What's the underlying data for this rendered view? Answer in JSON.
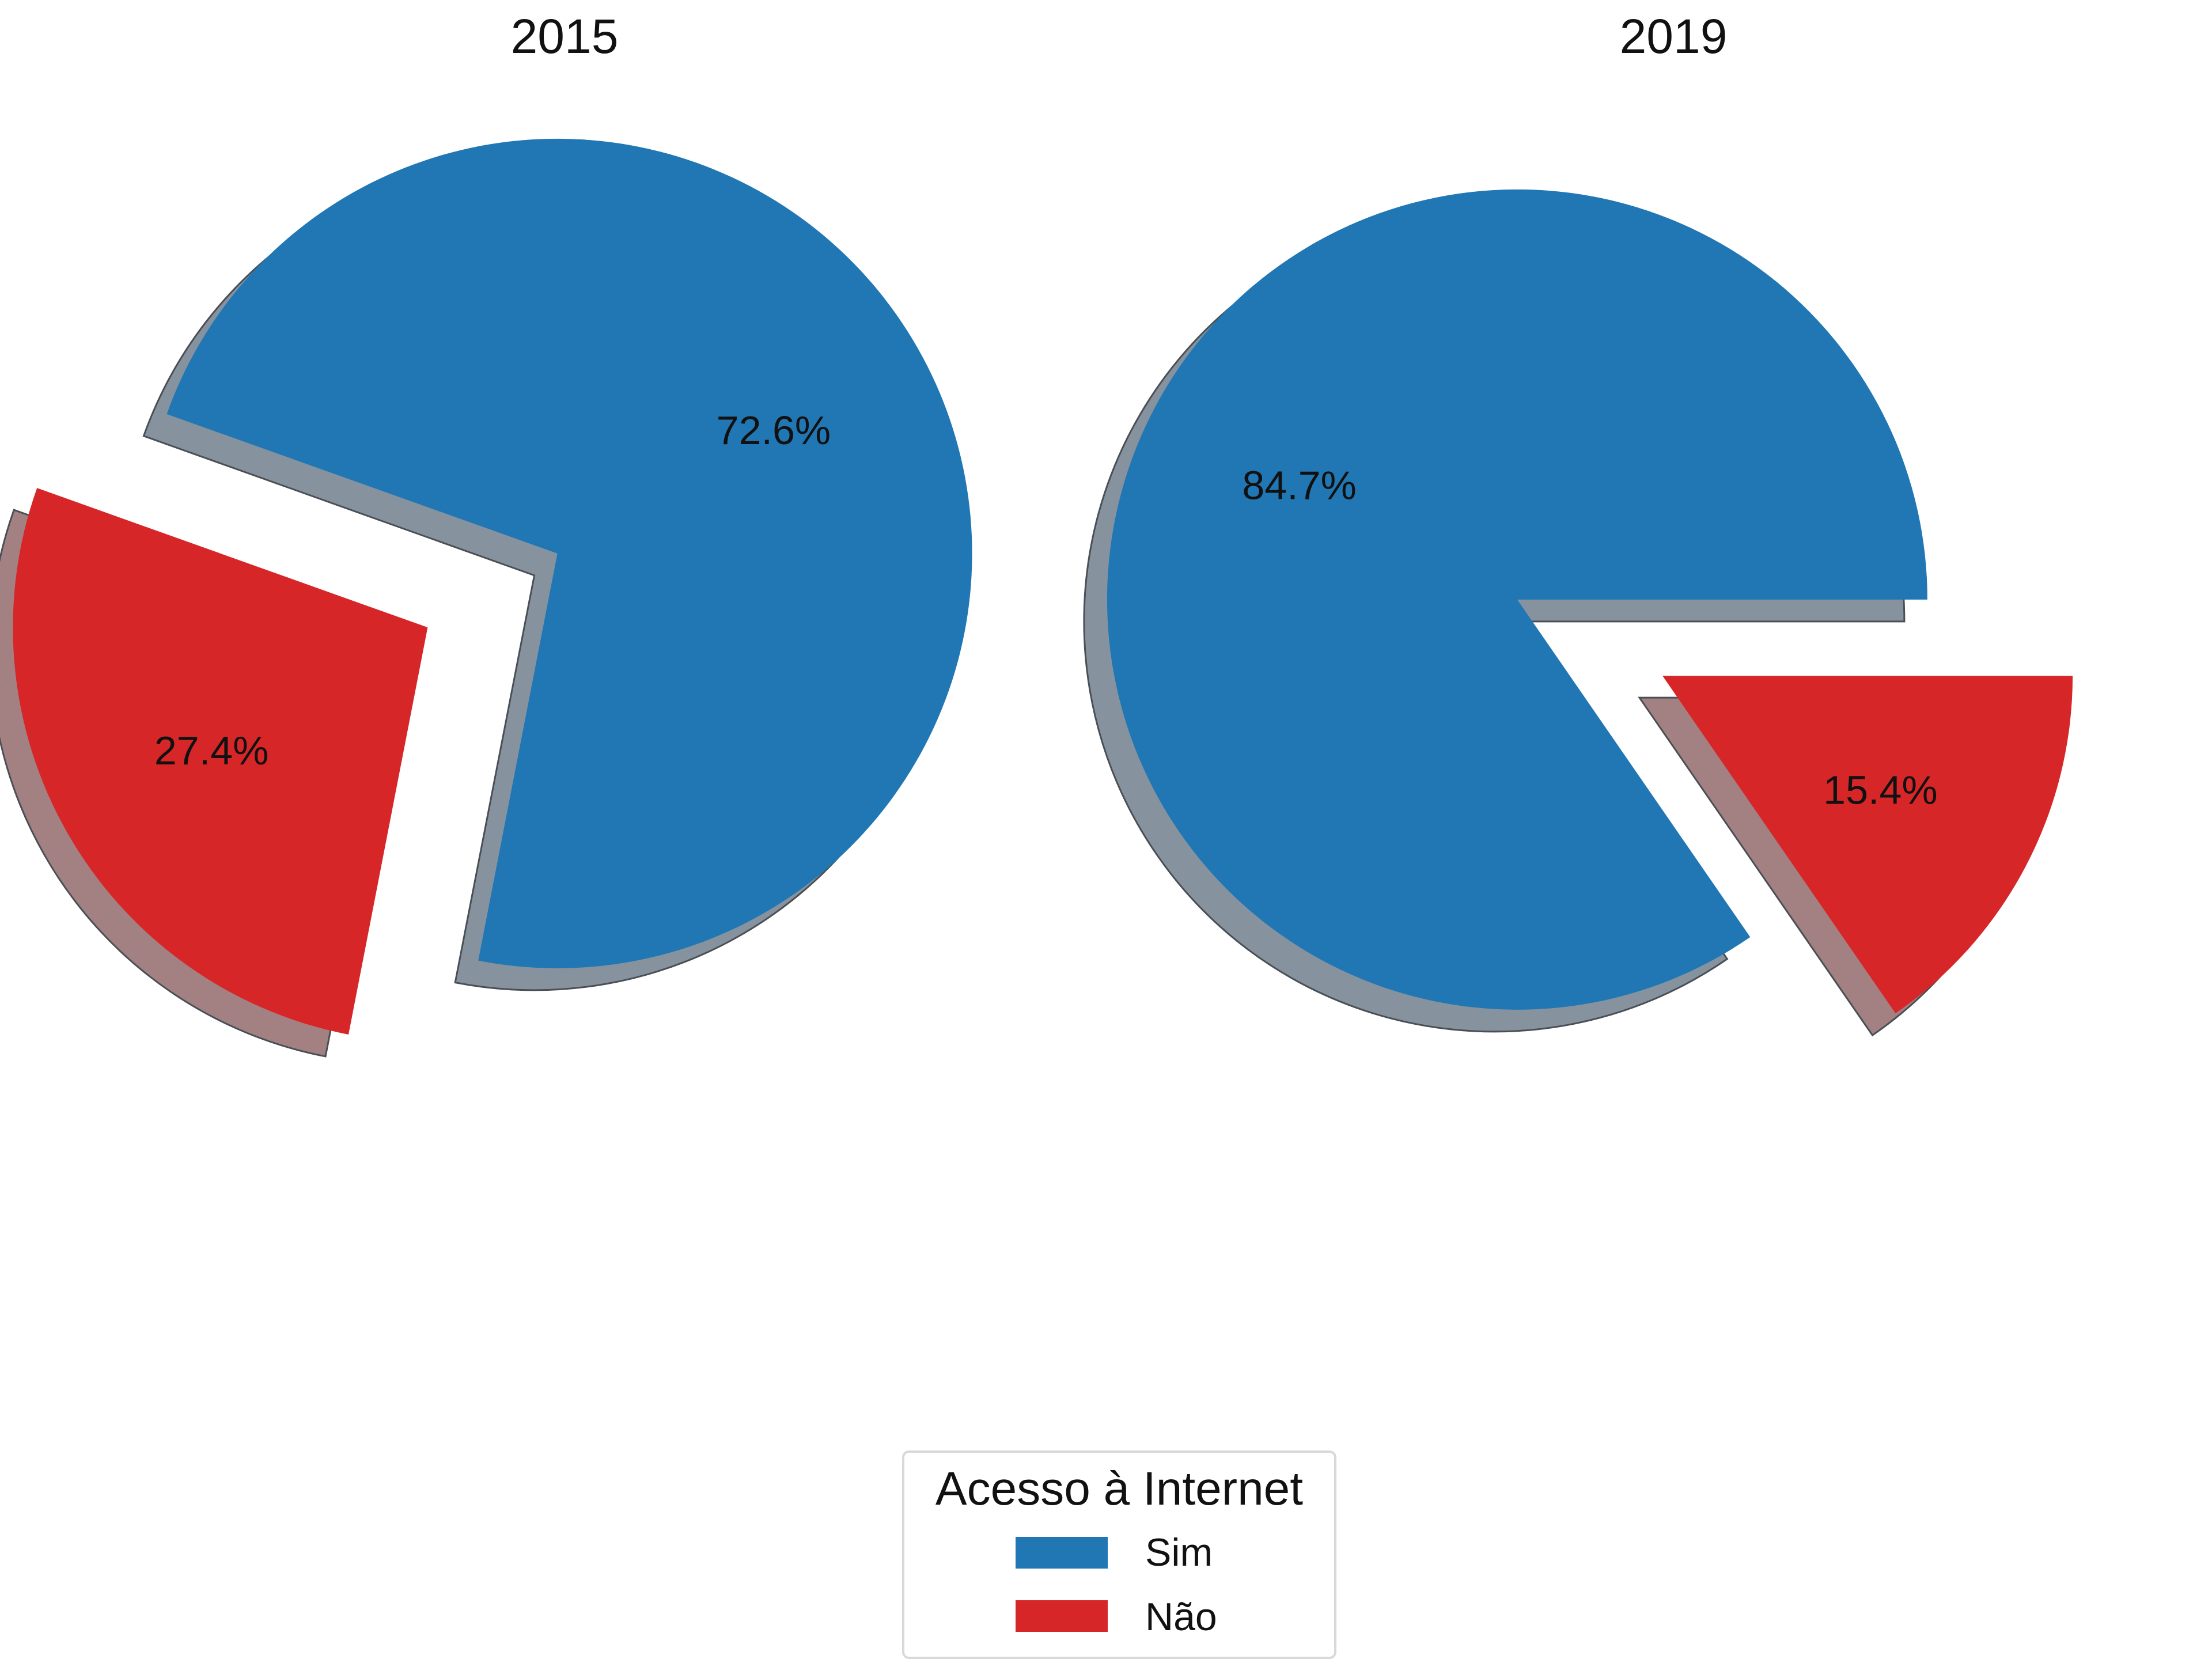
{
  "chart_data": [
    {
      "type": "pie",
      "title": "2015",
      "categories": [
        "Sim",
        "Não"
      ],
      "values": [
        72.6,
        27.4
      ],
      "labels": [
        "72.6%",
        "27.4%"
      ],
      "colors": [
        "#2077b4",
        "#d62628"
      ],
      "exploded": "both slices exploded, with drop shadow"
    },
    {
      "type": "pie",
      "title": "2019",
      "categories": [
        "Sim",
        "Não"
      ],
      "values": [
        84.7,
        15.4
      ],
      "labels": [
        "84.7%",
        "15.4%"
      ],
      "colors": [
        "#2077b4",
        "#d62628"
      ],
      "exploded": "both slices exploded, with drop shadow"
    }
  ],
  "legend": {
    "title": "Acesso à Internet",
    "placement": "bottom-center",
    "items": [
      {
        "label": "Sim",
        "color": "#2077b4"
      },
      {
        "label": "Não",
        "color": "#d62628"
      }
    ]
  }
}
